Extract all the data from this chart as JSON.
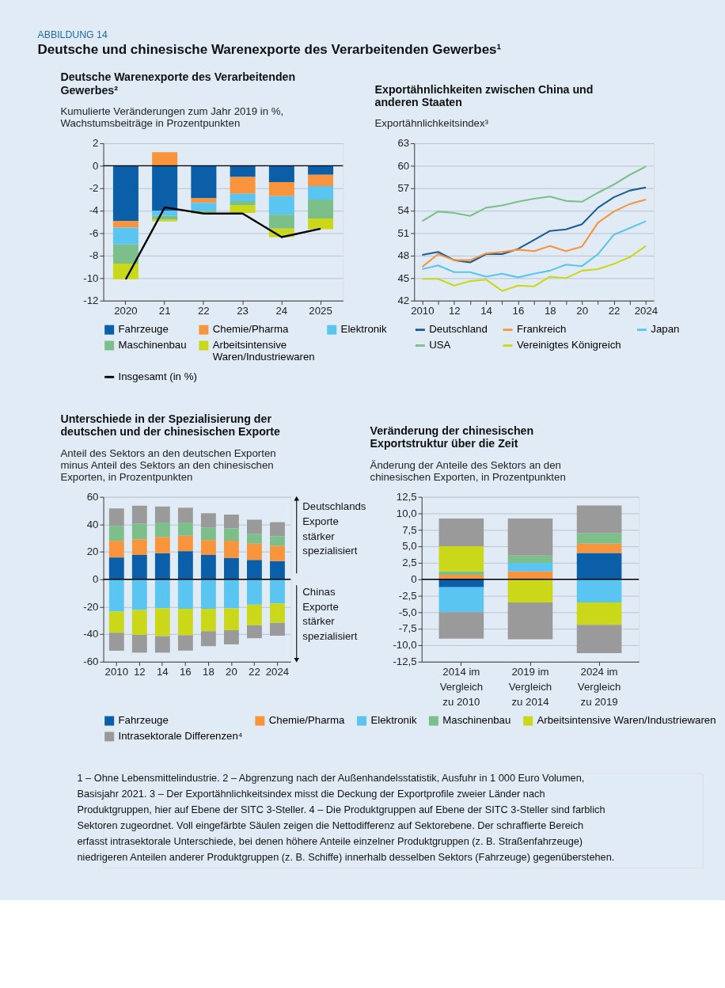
{
  "chart_data": [
    {
      "type": "bar",
      "stacked": true,
      "title": "Deutsche Warenexporte des Verarbeitenden Gewerbes²",
      "subtitle": "Kumulierte Veränderungen zum Jahr 2019 in %, Wachstumsbeiträge in Prozentpunkten",
      "annotations": [
        "ABBILDUNG 14",
        "Deutsche und chinesische Warenexporte des Verarbeitenden Gewerbes¹"
      ],
      "categories": [
        "2020",
        "21",
        "22",
        "23",
        "24",
        "2025"
      ],
      "ylim": [
        -12,
        2
      ],
      "yticks": [
        -12,
        -10,
        -8,
        -6,
        -4,
        -2,
        0,
        2
      ],
      "grid": "y",
      "legend": "bottom",
      "ref_lines": [
        {
          "axis": "y",
          "value": 0,
          "color": "#000000"
        }
      ],
      "series": [
        {
          "name": "Fahrzeuge",
          "color": "#0b5ea8",
          "values": [
            -4.9,
            -4.0,
            -2.9,
            -1.0,
            -1.45,
            -0.8
          ]
        },
        {
          "name": "Chemie/Pharma",
          "color": "#f7943c",
          "values": [
            -0.6,
            1.2,
            -0.4,
            -1.5,
            -1.25,
            -1.0
          ]
        },
        {
          "name": "Elektronik",
          "color": "#5bc5f2",
          "values": [
            -1.5,
            -0.45,
            -0.7,
            -0.65,
            -1.65,
            -1.2
          ]
        },
        {
          "name": "Maschinenbau",
          "color": "#7dbf8a",
          "values": [
            -1.7,
            -0.35,
            -0.15,
            -0.35,
            -1.25,
            -1.7
          ]
        },
        {
          "name": "Arbeitsintensive Waren/Industriewaren",
          "color": "#cbd81a",
          "values": [
            -1.4,
            -0.15,
            -0.1,
            -0.7,
            -0.75,
            -0.95
          ]
        },
        {
          "name": "Insgesamt (in %)",
          "type": "line",
          "color": "#000000",
          "values": [
            -10.1,
            -3.7,
            -4.25,
            -4.25,
            -6.35,
            -5.6
          ]
        }
      ]
    },
    {
      "type": "line",
      "title": "Exportähnlichkeiten zwischen China und anderen Staaten",
      "subtitle": "Exportähnlichkeitsindex³",
      "x": [
        2010,
        2011,
        2012,
        2013,
        2014,
        2015,
        2016,
        2017,
        2018,
        2019,
        2020,
        2021,
        2022,
        2023,
        2024
      ],
      "xlim": [
        2009.5,
        2024.5
      ],
      "xticks": [
        2010,
        {
          "value": 2011,
          "label": null
        },
        {
          "value": 2012,
          "label": "12"
        },
        {
          "value": 2013,
          "label": null
        },
        {
          "value": 2014,
          "label": "14"
        },
        {
          "value": 2015,
          "label": null
        },
        {
          "value": 2016,
          "label": "16"
        },
        {
          "value": 2017,
          "label": null
        },
        {
          "value": 2018,
          "label": "18"
        },
        {
          "value": 2019,
          "label": null
        },
        {
          "value": 2020,
          "label": "20"
        },
        {
          "value": 2021,
          "label": null
        },
        {
          "value": 2022,
          "label": "22"
        },
        {
          "value": 2023,
          "label": null
        },
        2024
      ],
      "ylim": [
        42,
        63
      ],
      "yticks": [
        42,
        45,
        48,
        51,
        54,
        57,
        60,
        63
      ],
      "grid": "y",
      "legend": "bottom",
      "line_style": "solid",
      "series": [
        {
          "name": "Deutschland",
          "color": "#1a5c96",
          "values": [
            48.1,
            48.5,
            47.4,
            47.1,
            48.2,
            48.2,
            48.9,
            50.1,
            51.3,
            51.5,
            52.2,
            54.4,
            55.8,
            56.7,
            57.1
          ]
        },
        {
          "name": "Frankreich",
          "color": "#f7943c",
          "values": [
            46.5,
            48.2,
            47.4,
            47.4,
            48.3,
            48.5,
            48.8,
            48.6,
            49.3,
            48.6,
            49.2,
            52.4,
            53.9,
            54.9,
            55.5
          ]
        },
        {
          "name": "Japan",
          "color": "#5bc5f2",
          "values": [
            46.2,
            46.7,
            45.8,
            45.8,
            45.2,
            45.6,
            45.1,
            45.6,
            46.0,
            46.8,
            46.6,
            48.2,
            50.8,
            51.7,
            52.6
          ]
        },
        {
          "name": "USA",
          "color": "#7dbf8a",
          "values": [
            52.6,
            53.9,
            53.7,
            53.3,
            54.4,
            54.7,
            55.2,
            55.6,
            55.9,
            55.3,
            55.2,
            56.4,
            57.5,
            58.8,
            59.9
          ]
        },
        {
          "name": "Vereinigtes Königreich",
          "color": "#cbd81a",
          "values": [
            44.9,
            44.9,
            44.0,
            44.6,
            44.8,
            43.3,
            44.0,
            43.9,
            45.2,
            45.0,
            46.0,
            46.2,
            46.9,
            47.8,
            49.3
          ]
        }
      ]
    },
    {
      "type": "bar",
      "stacked": true,
      "title": "Unterschiede in der Spezialisierung der deutschen und der chinesischen Exporte",
      "subtitle": "Anteil des Sektors an den deutschen Exporten minus Anteil des Sektors an den chinesischen Exporten, in Prozentpunkten",
      "annotations": [
        "Deutschlands Exporte stärker spezialisiert",
        "Chinas Exporte stärker spezialisiert"
      ],
      "categories": [
        "2010",
        "12",
        "14",
        "16",
        "18",
        "20",
        "22",
        "2024"
      ],
      "ylim": [
        -60,
        60
      ],
      "yticks": [
        -60,
        -40,
        -20,
        0,
        20,
        40,
        60
      ],
      "grid": "y",
      "legend": "bottom",
      "ref_lines": [
        {
          "axis": "y",
          "value": 0,
          "color": "#000000"
        }
      ],
      "series": [
        {
          "name": "Fahrzeuge",
          "color": "#0b5ea8",
          "values": [
            15.9,
            17.7,
            19.0,
            20.5,
            17.7,
            15.6,
            14.1,
            13.2
          ]
        },
        {
          "name": "Chemie/Pharma",
          "color": "#f7943c",
          "values": [
            12.1,
            11.4,
            11.8,
            11.2,
            10.9,
            12.5,
            11.8,
            11.2
          ]
        },
        {
          "name": "Elektronik",
          "color": "#5bc5f2",
          "values": [
            -23.5,
            -22.4,
            -21.2,
            -21.5,
            -21.5,
            -21.2,
            -18.5,
            -17.6
          ]
        },
        {
          "name": "Maschinenbau",
          "color": "#7dbf8a",
          "values": [
            10.9,
            11.3,
            10.5,
            9.6,
            9.0,
            9.0,
            7.2,
            6.9
          ]
        },
        {
          "name": "Arbeitsintensive Waren/Industriewaren",
          "color": "#cbd81a",
          "values": [
            -15.4,
            -18.1,
            -20.2,
            -19.2,
            -16.3,
            -15.9,
            -15.0,
            -14.1
          ]
        },
        {
          "name": "Intrasektorale Differenzen⁴",
          "color": "#9a9a9a",
          "values": [
            12.7,
            13.2,
            11.7,
            10.8,
            10.5,
            10.0,
            10.3,
            10.3
          ]
        },
        {
          "color": "#9a9a9a",
          "values": [
            -13.1,
            -12.9,
            -12.0,
            -11.2,
            -10.9,
            -10.3,
            -9.4,
            -9.4
          ]
        }
      ]
    },
    {
      "type": "bar",
      "stacked": true,
      "title": "Veränderung der chinesischen Exportstruktur über die Zeit",
      "subtitle": "Änderung der Anteile des Sektors an den chinesischen Exporten, in Prozentpunkten",
      "annotations": [
        "1 – Ohne Lebensmittelindustrie.",
        "2 – Abgrenzung nach der Außenhandelsstatistik, Ausfuhr in 1 000 Euro Volumen, Basisjahr 2021.",
        "3 – Der Exportähnlichkeitsindex misst die Deckung der Exportprofile zweier Länder nach Produktgruppen, hier auf Ebene der SITC 3-Steller.",
        "4 – Die Produktgruppen auf Ebene der SITC 3-Steller sind farblich Sektoren zugeordnet. Voll eingefärbte Säulen zeigen die Nettodifferenz auf Sektorebene. Der schraffierte Bereich erfasst intrasektorale Unterschiede, bei denen höhere Anteile einzelner Produktgruppen (z. B. Straßenfahrzeuge) niedrigeren Anteilen anderer Produktgruppen (z. B. Schiffe) innerhalb desselben Sektors (Fahrzeuge) gegenüberstehen."
      ],
      "categories": [
        "2014 im Vergleich zu 2010",
        "2019 im Vergleich zu 2014",
        "2024 im Vergleich zu 2019"
      ],
      "ylim": [
        -12.5,
        12.5
      ],
      "yticks": [
        {
          "value": -12.5,
          "label": "-12,5"
        },
        {
          "value": -10,
          "label": "-10,0"
        },
        {
          "value": -7.5,
          "label": "-7,5"
        },
        {
          "value": -5,
          "label": "-5,0"
        },
        {
          "value": -2.5,
          "label": "-2,5"
        },
        0,
        {
          "value": 2.5,
          "label": "2,5"
        },
        {
          "value": 5,
          "label": "5,0"
        },
        {
          "value": 7.5,
          "label": "7,5"
        },
        {
          "value": 10,
          "label": "10,0"
        },
        {
          "value": 12.5,
          "label": "12,5"
        }
      ],
      "grid": "y",
      "ref_lines": [
        {
          "axis": "y",
          "value": 0,
          "color": "#000000"
        }
      ],
      "series": [
        {
          "color": "#0b5ea8",
          "values": [
            -1.2,
            null,
            4.0
          ]
        },
        {
          "color": "#f7943c",
          "values": [
            0.7,
            1.2,
            1.4
          ]
        },
        {
          "color": "#5bc5f2",
          "values": [
            -3.8,
            1.3,
            -3.5
          ]
        },
        {
          "color": "#7dbf8a",
          "values": [
            0.5,
            1.1,
            1.6
          ]
        },
        {
          "color": "#cbd81a",
          "values": [
            3.8,
            -3.5,
            -3.4
          ]
        },
        {
          "color": "#9a9a9a",
          "values": [
            4.2,
            5.6,
            4.2
          ]
        },
        {
          "color": "#9a9a9a",
          "values": [
            -4.0,
            -5.6,
            -4.3
          ]
        }
      ]
    }
  ]
}
